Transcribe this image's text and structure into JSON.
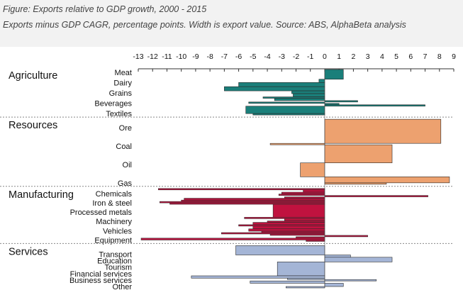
{
  "header": {
    "title": "Figure: Exports relative to GDP growth, 2000 - 2015",
    "subtitle": "Exports minus GDP CAGR, percentage points. Width is export value. Source: ABS, AlphaBeta analysis"
  },
  "colors": {
    "Agriculture": "#1a7f7a",
    "Resources": "#eda16f",
    "Manufacturing": "#c0123f",
    "Services": "#a4b5d6"
  },
  "chart_data": {
    "type": "bar",
    "orientation": "horizontal",
    "title": "Exports relative to GDP growth, 2000 - 2015",
    "xlabel": "Exports minus GDP CAGR, percentage points",
    "xlim": [
      -13,
      9
    ],
    "xticks": [
      "-13",
      "-12",
      "-11",
      "-10",
      "-9",
      "-8",
      "-7",
      "-6",
      "-5",
      "-4",
      "-3",
      "-2",
      "-1",
      "0",
      "1",
      "2",
      "3",
      "4",
      "5",
      "6",
      "7",
      "8",
      "9"
    ],
    "sections": [
      {
        "name": "Agriculture",
        "labels": [
          "Meat",
          "Dairy",
          "Grains",
          "Beverages",
          "Textiles"
        ],
        "bars": [
          {
            "v": 1.3,
            "w": 2.1
          },
          {
            "v": -0.4,
            "w": 0.7
          },
          {
            "v": -6.0,
            "w": 0.9
          },
          {
            "v": -7.0,
            "w": 0.9
          },
          {
            "v": -2.3,
            "w": 0.6
          },
          {
            "v": -2.2,
            "w": 0.7
          },
          {
            "v": -4.3,
            "w": 0.3
          },
          {
            "v": -3.5,
            "w": 0.5
          },
          {
            "v": 2.3,
            "w": 0.3
          },
          {
            "v": -5.3,
            "w": 0.3
          },
          {
            "v": 1.0,
            "w": 0.3
          },
          {
            "v": 7.0,
            "w": 0.3
          },
          {
            "v": -5.5,
            "w": 1.6
          },
          {
            "v": -5.0,
            "w": 0.3
          }
        ]
      },
      {
        "name": "Resources",
        "labels": [
          "Ore",
          "Coal",
          "Oil",
          "Gas"
        ],
        "bars": [
          {
            "v": 8.1,
            "w": 5.2
          },
          {
            "v": -3.8,
            "w": 0.3
          },
          {
            "v": 4.7,
            "w": 3.9
          },
          {
            "v": -1.7,
            "w": 3.0
          },
          {
            "v": 8.7,
            "w": 1.3
          },
          {
            "v": 4.3,
            "w": 0.3
          }
        ]
      },
      {
        "name": "Manufacturing",
        "labels": [
          "Chemicals",
          "Iron & steel",
          "Processed metals",
          "Machinery",
          "Vehicles",
          "Equipment"
        ],
        "bars": [
          {
            "v": -11.6,
            "w": 0.3
          },
          {
            "v": -1.5,
            "w": 0.5
          },
          {
            "v": -3.0,
            "w": 0.4
          },
          {
            "v": -3.2,
            "w": 0.3
          },
          {
            "v": 7.2,
            "w": 0.3
          },
          {
            "v": -2.8,
            "w": 0.3
          },
          {
            "v": -9.8,
            "w": 0.4
          },
          {
            "v": -10.0,
            "w": 0.3
          },
          {
            "v": -11.5,
            "w": 0.3
          },
          {
            "v": -10.8,
            "w": 0.3
          },
          {
            "v": -3.6,
            "w": 2.8
          },
          {
            "v": -5.6,
            "w": 0.3
          },
          {
            "v": -2.8,
            "w": 0.5
          },
          {
            "v": -4.0,
            "w": 0.3
          },
          {
            "v": -5.0,
            "w": 0.5
          },
          {
            "v": -6.0,
            "w": 0.3
          },
          {
            "v": -5.0,
            "w": 0.6
          },
          {
            "v": -5.3,
            "w": 0.5
          },
          {
            "v": -4.4,
            "w": 0.3
          },
          {
            "v": -7.2,
            "w": 0.3
          },
          {
            "v": -3.8,
            "w": 0.3
          },
          {
            "v": 3.0,
            "w": 0.3
          },
          {
            "v": -2.0,
            "w": 0.3
          },
          {
            "v": -12.8,
            "w": 0.4
          },
          {
            "v": -1.3,
            "w": 0.3
          }
        ]
      },
      {
        "name": "Services",
        "labels": [
          "Transport",
          "Education",
          "Tourism",
          "Financial services",
          "Business services",
          "Other"
        ],
        "bars": [
          {
            "v": -6.2,
            "w": 2.0
          },
          {
            "v": 1.8,
            "w": 0.5
          },
          {
            "v": 4.7,
            "w": 1.0
          },
          {
            "v": -3.3,
            "w": 3.0
          },
          {
            "v": -9.3,
            "w": 0.5
          },
          {
            "v": -2.6,
            "w": 0.3
          },
          {
            "v": 3.6,
            "w": 0.3
          },
          {
            "v": -5.2,
            "w": 0.5
          },
          {
            "v": 1.3,
            "w": 0.7
          },
          {
            "v": -2.7,
            "w": 0.3
          }
        ]
      }
    ]
  }
}
